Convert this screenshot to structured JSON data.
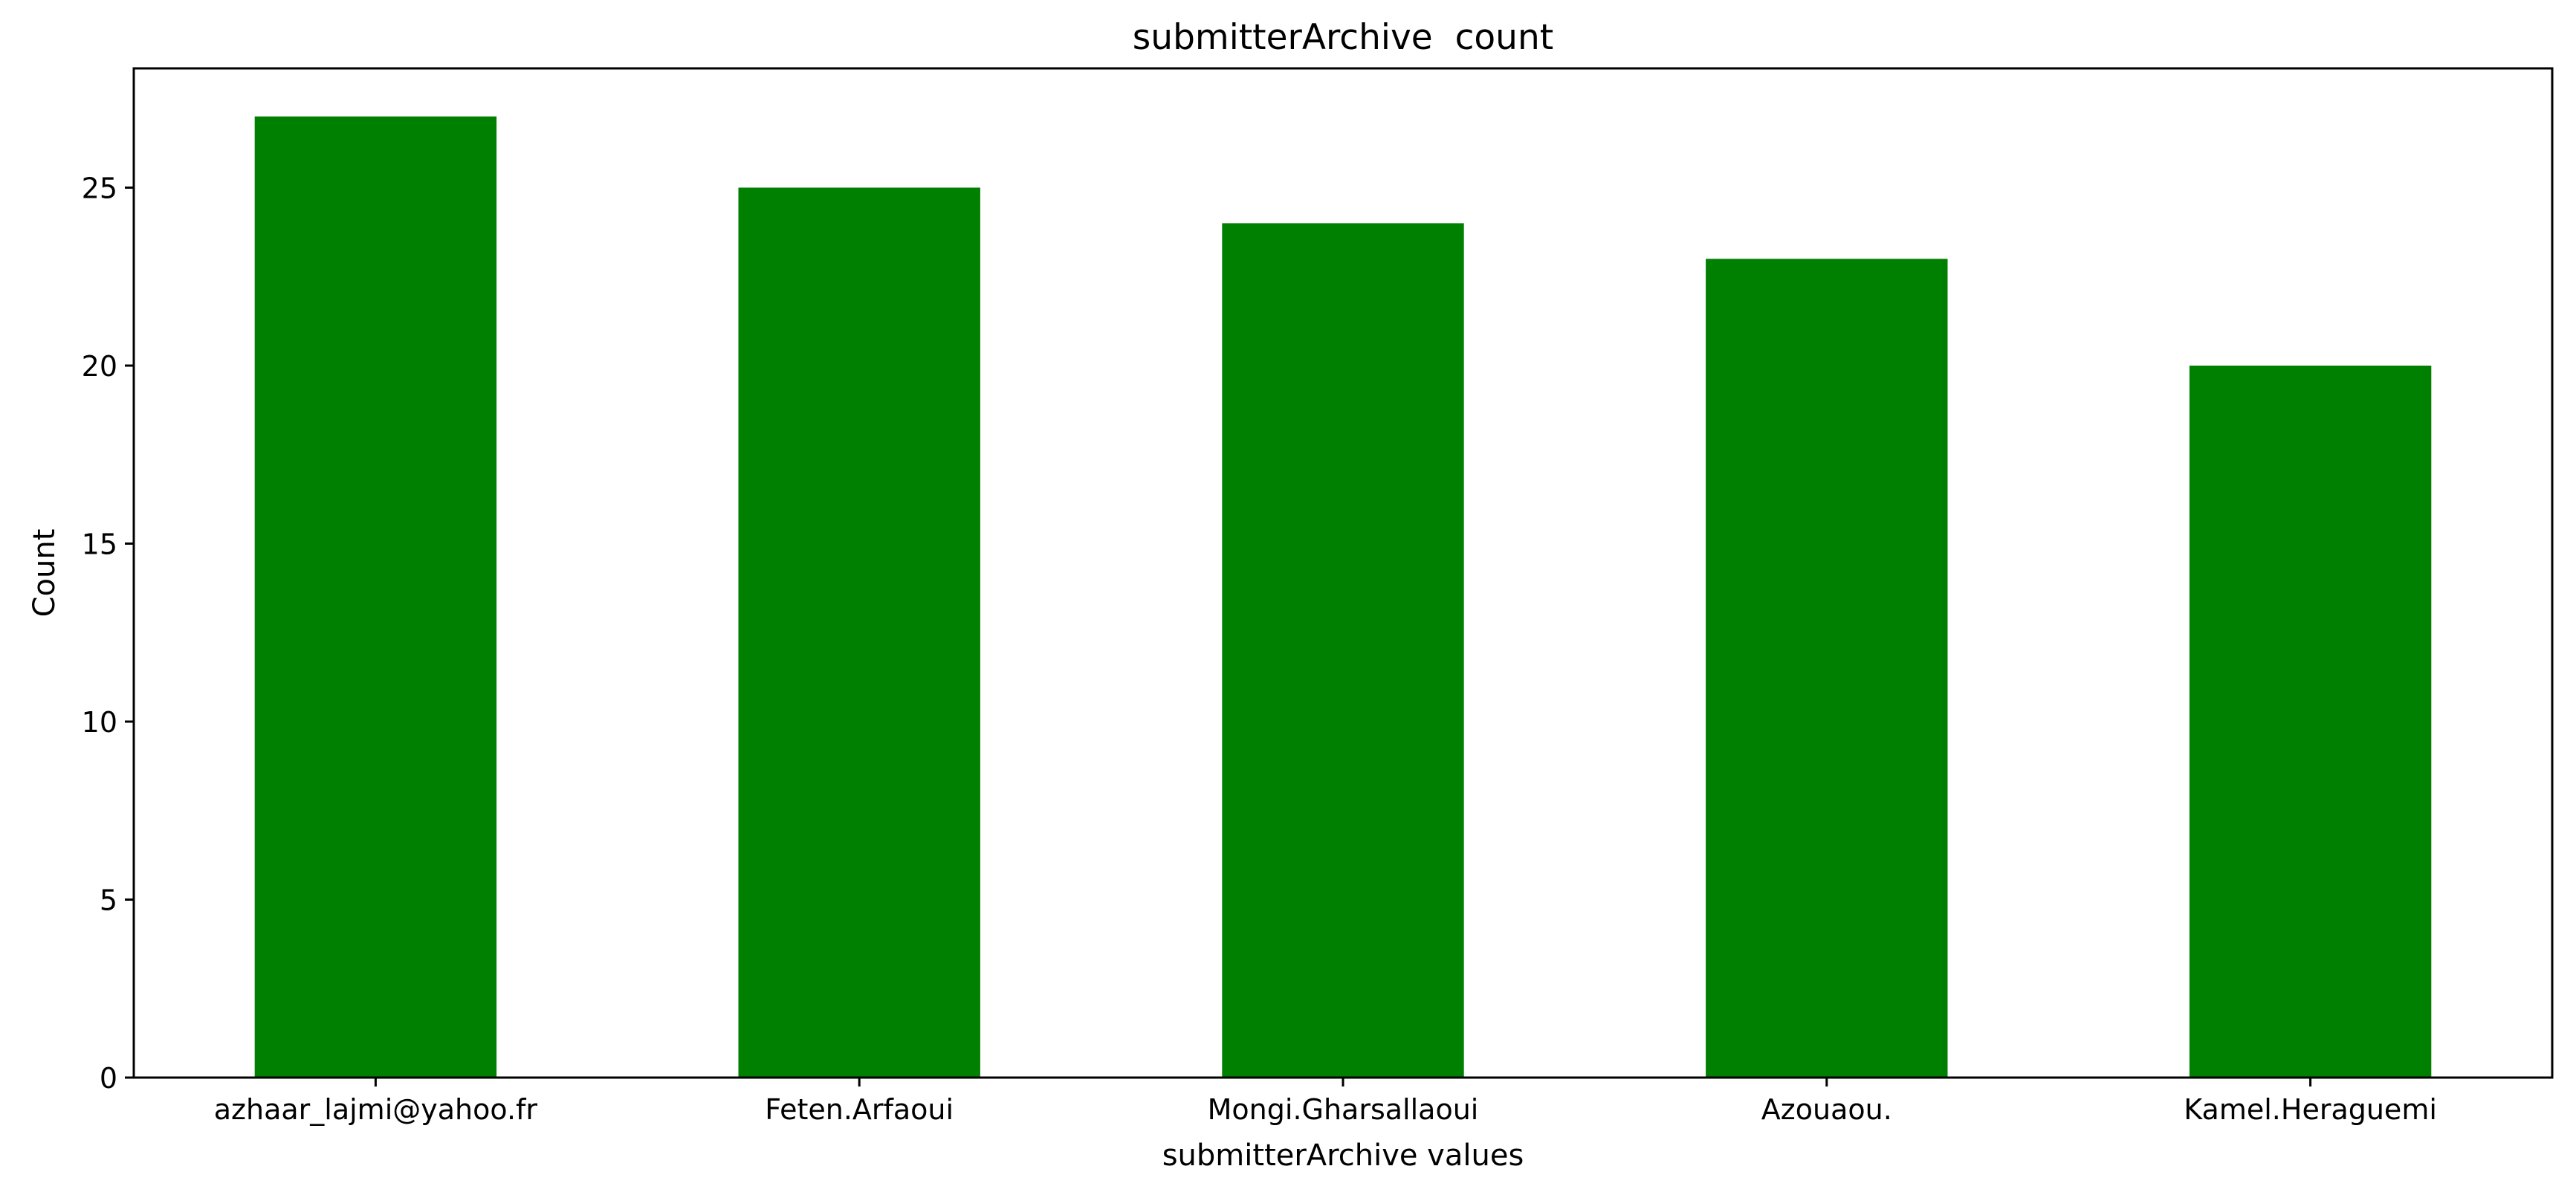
{
  "chart_data": {
    "type": "bar",
    "title": "submitterArchive  count",
    "xlabel": "submitterArchive values",
    "ylabel": "Count",
    "categories": [
      "azhaar_lajmi@yahoo.fr",
      "Feten.Arfaoui",
      "Mongi.Gharsallaoui",
      "Azouaou.",
      "Kamel.Heraguemi"
    ],
    "values": [
      27,
      25,
      24,
      23,
      20
    ],
    "ylim": [
      0,
      28.35
    ],
    "yticks": [
      0,
      5,
      10,
      15,
      20,
      25
    ],
    "bar_color": "#008000",
    "grid": false,
    "legend": "none"
  }
}
